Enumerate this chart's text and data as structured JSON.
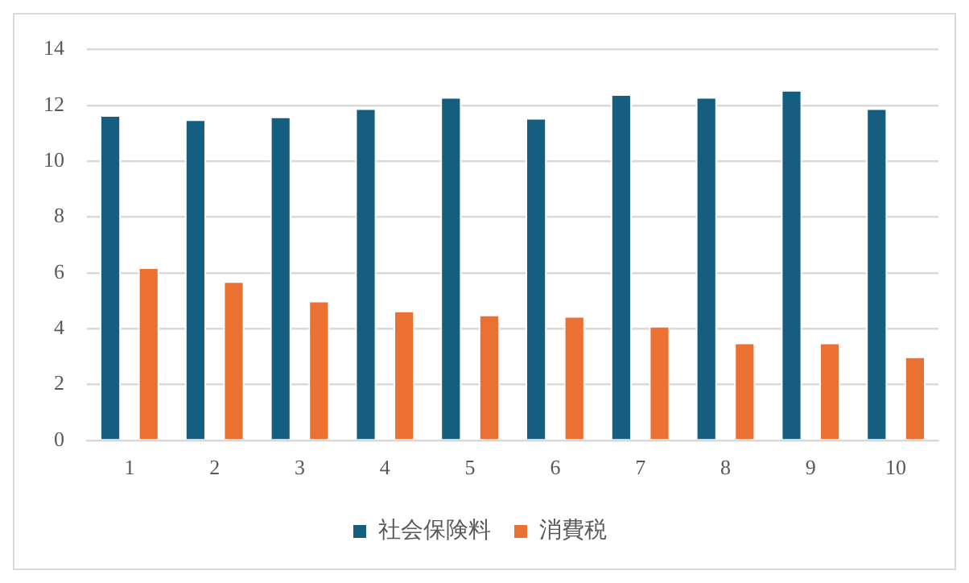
{
  "chart_data": {
    "type": "bar",
    "categories": [
      "1",
      "2",
      "3",
      "4",
      "5",
      "6",
      "7",
      "8",
      "9",
      "10"
    ],
    "series": [
      {
        "name": "社会保険料",
        "color": "#165e80",
        "values": [
          11.65,
          11.5,
          11.6,
          11.9,
          12.3,
          11.55,
          12.4,
          12.3,
          12.55,
          11.9
        ]
      },
      {
        "name": "消費税",
        "color": "#ea7132",
        "values": [
          6.2,
          5.7,
          5.0,
          4.65,
          4.5,
          4.45,
          4.1,
          3.5,
          3.5,
          3.0
        ]
      }
    ],
    "ylim": [
      0,
      14
    ],
    "yticks": [
      0,
      2,
      4,
      6,
      8,
      10,
      12,
      14
    ],
    "grid": "y",
    "legend": "bottom"
  }
}
